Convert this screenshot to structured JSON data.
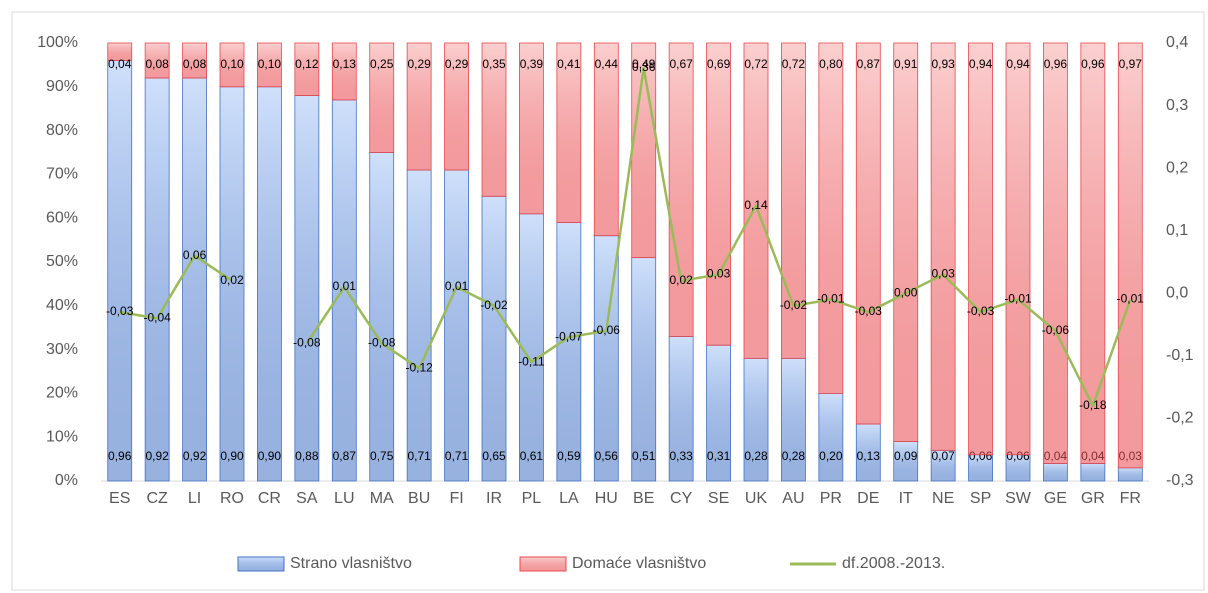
{
  "chart_data": {
    "type": "bar",
    "stacked": true,
    "categories": [
      "ES",
      "CZ",
      "LI",
      "RO",
      "CR",
      "SA",
      "LU",
      "MA",
      "BU",
      "FI",
      "IR",
      "PL",
      "LA",
      "HU",
      "BE",
      "CY",
      "SE",
      "UK",
      "AU",
      "PR",
      "DE",
      "IT",
      "NE",
      "SP",
      "SW",
      "GE",
      "GR",
      "FR"
    ],
    "series": [
      {
        "name": "Strano vlasništvo",
        "color": "#4472c4",
        "fill": "#cfe0fb",
        "values": [
          0.96,
          0.92,
          0.92,
          0.9,
          0.9,
          0.88,
          0.87,
          0.75,
          0.71,
          0.71,
          0.65,
          0.61,
          0.59,
          0.56,
          0.51,
          0.33,
          0.31,
          0.28,
          0.28,
          0.2,
          0.13,
          0.09,
          0.07,
          0.06,
          0.06,
          0.04,
          0.04,
          0.03
        ],
        "value_labels": [
          "0,96",
          "0,92",
          "0,92",
          "0,90",
          "0,90",
          "0,88",
          "0,87",
          "0,75",
          "0,71",
          "0,71",
          "0,65",
          "0,61",
          "0,59",
          "0,56",
          "0,51",
          "0,33",
          "0,31",
          "0,28",
          "0,28",
          "0,20",
          "0,13",
          "0,09",
          "0,07",
          "0,06",
          "0,06",
          "0,04",
          "0,04",
          "0,03"
        ]
      },
      {
        "name": "Domaće vlasništvo",
        "color": "#e8484d",
        "fill": "#fbd0d0",
        "values": [
          0.04,
          0.08,
          0.08,
          0.1,
          0.1,
          0.12,
          0.13,
          0.25,
          0.29,
          0.29,
          0.35,
          0.39,
          0.41,
          0.44,
          0.49,
          0.67,
          0.69,
          0.72,
          0.72,
          0.8,
          0.87,
          0.91,
          0.93,
          0.94,
          0.94,
          0.96,
          0.96,
          0.97
        ],
        "value_labels": [
          "0,04",
          "0,08",
          "0,08",
          "0,10",
          "0,10",
          "0,12",
          "0,13",
          "0,25",
          "0,29",
          "0,29",
          "0,35",
          "0,39",
          "0,41",
          "0,44",
          "0,49",
          "0,67",
          "0,69",
          "0,72",
          "0,72",
          "0,80",
          "0,87",
          "0,91",
          "0,93",
          "0,94",
          "0,94",
          "0,96",
          "0,96",
          "0,97"
        ]
      },
      {
        "name": "df.2008.-2013.",
        "type": "line",
        "axis": "y2",
        "color": "#9bbb59",
        "values": [
          -0.03,
          -0.04,
          0.06,
          0.02,
          null,
          -0.08,
          0.01,
          -0.08,
          -0.12,
          0.01,
          -0.02,
          -0.11,
          -0.07,
          -0.06,
          0.36,
          0.02,
          0.03,
          0.14,
          -0.02,
          -0.01,
          -0.03,
          0.0,
          0.03,
          -0.03,
          -0.01,
          -0.06,
          -0.18,
          -0.01
        ],
        "value_labels": [
          "-0,03",
          "-0,04",
          "0,06",
          "0,02",
          null,
          "-0,08",
          "0,01",
          "-0,08",
          "-0,12",
          "0,01",
          "-0,02",
          "-0,11",
          "-0,07",
          "-0,06",
          "0,36",
          "0,02",
          "0,03",
          "0,14",
          "-0,02",
          "-0,01",
          "-0,03",
          "0,00",
          "0,03",
          "-0,03",
          "-0,01",
          "-0,06",
          "-0,18",
          "-0,01"
        ]
      }
    ],
    "ylim": [
      0,
      1
    ],
    "yticks": [
      {
        "value": 0,
        "label": "0%"
      },
      {
        "value": 0.1,
        "label": "10%"
      },
      {
        "value": 0.2,
        "label": "20%"
      },
      {
        "value": 0.3,
        "label": "30%"
      },
      {
        "value": 0.4,
        "label": "40%"
      },
      {
        "value": 0.5,
        "label": "50%"
      },
      {
        "value": 0.6,
        "label": "60%"
      },
      {
        "value": 0.7,
        "label": "70%"
      },
      {
        "value": 0.8,
        "label": "80%"
      },
      {
        "value": 0.9,
        "label": "90%"
      },
      {
        "value": 1,
        "label": "100%"
      }
    ],
    "y2lim": [
      -0.3,
      0.4
    ],
    "y2ticks": [
      {
        "value": -0.3,
        "label": "-0,3"
      },
      {
        "value": -0.2,
        "label": "-0,2"
      },
      {
        "value": -0.1,
        "label": "-0,1"
      },
      {
        "value": 0,
        "label": "0,0"
      },
      {
        "value": 0.1,
        "label": "0,1"
      },
      {
        "value": 0.2,
        "label": "0,2"
      },
      {
        "value": 0.3,
        "label": "0,3"
      },
      {
        "value": 0.4,
        "label": "0,4"
      }
    ],
    "legend": "bottom"
  }
}
